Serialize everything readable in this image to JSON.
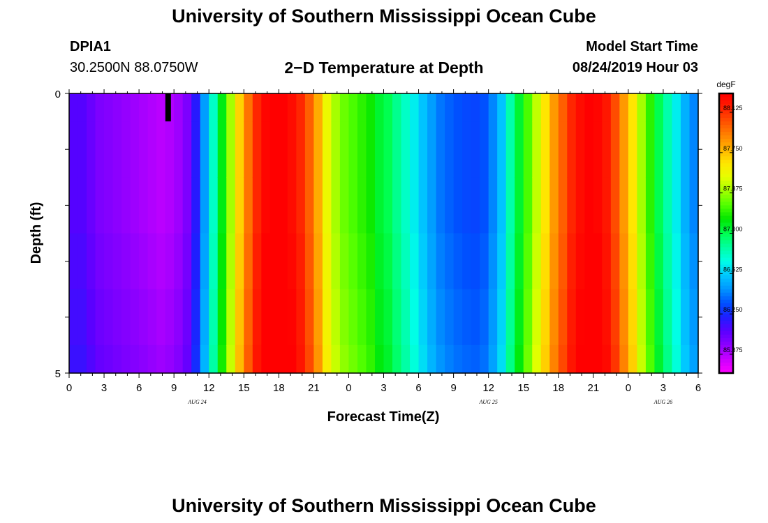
{
  "header": {
    "title_top": "University of Southern Mississippi Ocean Cube",
    "station_id": "DPIA1",
    "coordinates": "30.2500N 88.0750W",
    "plot_title": "2−D Temperature at Depth",
    "model_label": "Model Start Time",
    "model_time": "08/24/2019 Hour 03"
  },
  "footer": {
    "title_bottom": "University of Southern Mississippi Ocean Cube"
  },
  "chart_data": {
    "type": "heatmap",
    "title": "2−D Temperature at Depth",
    "xlabel": "Forecast Time(Z)",
    "ylabel": "Depth (ft)",
    "units": "degF",
    "x_tick_labels": [
      "0",
      "3",
      "6",
      "9",
      "12",
      "15",
      "18",
      "21",
      "0",
      "3",
      "6",
      "9",
      "12",
      "15",
      "18",
      "21",
      "0",
      "3",
      "6"
    ],
    "date_labels": [
      {
        "text": "AUG 24",
        "hour_index": 11
      },
      {
        "text": "AUG 25",
        "hour_index": 36
      },
      {
        "text": "AUG 26",
        "hour_index": 51
      }
    ],
    "x_range_hours": [
      0,
      54
    ],
    "y_range_ft": [
      0,
      5
    ],
    "y_tick_labels": [
      "0",
      "5"
    ],
    "depth_levels_ft": [
      0,
      0.5,
      1.5,
      2.5,
      3.5,
      4.5
    ],
    "colorbar": {
      "min": 85.7,
      "max": 88.3,
      "tick_values": [
        85.875,
        86.25,
        86.625,
        87.0,
        87.375,
        87.75,
        88.125
      ],
      "tick_labels": [
        "85.875",
        "86.250",
        "86.625",
        "87.000",
        "87.375",
        "87.750",
        "88.125"
      ],
      "colors": [
        "#ff00ff",
        "#c800ff",
        "#8c00ff",
        "#5a00ff",
        "#1e1eff",
        "#0050ff",
        "#0096ff",
        "#00c8ff",
        "#00ffe6",
        "#00ffa0",
        "#00ff50",
        "#00e600",
        "#50ff00",
        "#a0ff00",
        "#e6ff00",
        "#ffe600",
        "#ffb400",
        "#ff8200",
        "#ff5000",
        "#ff1e00",
        "#ff0000"
      ]
    },
    "missing_data": {
      "hour": 8.5,
      "depth_range_ft": [
        0,
        0.5
      ],
      "color": "#000000"
    },
    "surface_temperature_degF": [
      86.1,
      86.1,
      86.05,
      86.0,
      85.98,
      85.96,
      85.94,
      85.92,
      85.9,
      85.88,
      85.86,
      85.88,
      85.92,
      86.0,
      86.2,
      86.5,
      86.8,
      87.1,
      87.4,
      87.7,
      87.95,
      88.15,
      88.28,
      88.32,
      88.3,
      88.25,
      88.15,
      88.0,
      87.8,
      87.55,
      87.4,
      87.3,
      87.25,
      87.2,
      87.15,
      87.05,
      87.0,
      86.9,
      86.8,
      86.7,
      86.6,
      86.5,
      86.42,
      86.38,
      86.35,
      86.33,
      86.32,
      86.35,
      86.45,
      86.6,
      86.85,
      87.05,
      87.25,
      87.45,
      87.65,
      87.85,
      88.0,
      88.15,
      88.25,
      88.3,
      88.28,
      88.2,
      88.05,
      87.85,
      87.65,
      87.4,
      87.2,
      87.0,
      86.85,
      86.7,
      86.55,
      86.45
    ],
    "depth_offsets_degF": [
      0.0,
      0.0,
      0.0,
      0.02,
      0.04,
      0.06
    ]
  },
  "colors": {
    "frame": "#000000",
    "missing": "#000000"
  }
}
